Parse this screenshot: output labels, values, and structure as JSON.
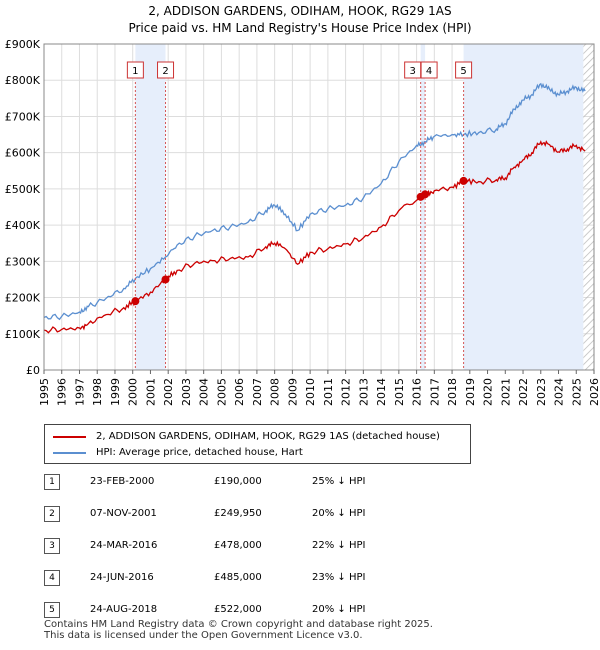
{
  "chart_data": {
    "type": "line",
    "title": "2, ADDISON GARDENS, ODIHAM, HOOK, RG29 1AS",
    "subtitle": "Price paid vs. HM Land Registry's House Price Index (HPI)",
    "xlim": [
      1995,
      2026
    ],
    "ylim": [
      0,
      900000
    ],
    "x_ticks": [
      "1995",
      "1996",
      "1997",
      "1998",
      "1999",
      "2000",
      "2001",
      "2002",
      "2003",
      "2004",
      "2005",
      "2006",
      "2007",
      "2008",
      "2009",
      "2010",
      "2011",
      "2012",
      "2013",
      "2014",
      "2015",
      "2016",
      "2017",
      "2018",
      "2019",
      "2020",
      "2021",
      "2022",
      "2023",
      "2024",
      "2025",
      "2026"
    ],
    "y_ticks": [
      {
        "value": 0,
        "label": "£0"
      },
      {
        "value": 100000,
        "label": "£100K"
      },
      {
        "value": 200000,
        "label": "£200K"
      },
      {
        "value": 300000,
        "label": "£300K"
      },
      {
        "value": 400000,
        "label": "£400K"
      },
      {
        "value": 500000,
        "label": "£500K"
      },
      {
        "value": 600000,
        "label": "£600K"
      },
      {
        "value": 700000,
        "label": "£700K"
      },
      {
        "value": 800000,
        "label": "£800K"
      },
      {
        "value": 900000,
        "label": "£900K"
      }
    ],
    "grid": true,
    "series": [
      {
        "name": "2, ADDISON GARDENS, ODIHAM, HOOK, RG29 1AS (detached house)",
        "color": "#cc0000",
        "x": [
          1995.0,
          1996.0,
          1997.0,
          1997.5,
          1998.5,
          1999.5,
          2000.15,
          2001.0,
          2001.85,
          2002.5,
          2003.5,
          2004.5,
          2005.5,
          2006.5,
          2007.5,
          2008.0,
          2008.6,
          2009.3,
          2010.0,
          2011.0,
          2012.0,
          2013.0,
          2014.0,
          2015.0,
          2016.23,
          2016.48,
          2017.0,
          2018.0,
          2018.65,
          2019.5,
          2020.5,
          2021.0,
          2021.5,
          2022.0,
          2022.5,
          2023.0,
          2023.5,
          2024.0,
          2024.5,
          2025.0,
          2025.5
        ],
        "y": [
          110000,
          112000,
          116000,
          128000,
          153000,
          172000,
          190000,
          215000,
          249950,
          275000,
          295000,
          302000,
          308000,
          312000,
          340000,
          350000,
          335000,
          292000,
          325000,
          335000,
          348000,
          365000,
          395000,
          440000,
          478000,
          485000,
          495000,
          505000,
          522000,
          520000,
          525000,
          530000,
          560000,
          580000,
          600000,
          630000,
          622000,
          602000,
          610000,
          620000,
          605000
        ]
      },
      {
        "name": "HPI: Average price, detached house, Hart",
        "color": "#5b8fd0",
        "x": [
          1995.0,
          1996.0,
          1997.0,
          1997.5,
          1998.5,
          1999.5,
          2000.15,
          2001.0,
          2001.85,
          2002.5,
          2003.5,
          2004.5,
          2005.5,
          2006.5,
          2007.5,
          2008.0,
          2008.6,
          2009.3,
          2010.0,
          2011.0,
          2012.0,
          2013.0,
          2014.0,
          2015.0,
          2016.0,
          2016.5,
          2017.0,
          2018.0,
          2018.65,
          2019.5,
          2020.5,
          2021.0,
          2021.5,
          2022.0,
          2022.5,
          2023.0,
          2023.5,
          2024.0,
          2024.5,
          2025.0,
          2025.5
        ],
        "y": [
          145000,
          148000,
          160000,
          175000,
          198000,
          225000,
          253000,
          280000,
          312000,
          345000,
          370000,
          385000,
          395000,
          408000,
          440000,
          455000,
          430000,
          385000,
          430000,
          445000,
          455000,
          475000,
          515000,
          575000,
          620000,
          630000,
          645000,
          650000,
          650000,
          655000,
          665000,
          680000,
          720000,
          745000,
          760000,
          790000,
          775000,
          760000,
          770000,
          780000,
          770000
        ]
      }
    ],
    "sales": [
      {
        "label": "1",
        "x": 2000.15,
        "y": 190000
      },
      {
        "label": "2",
        "x": 2001.85,
        "y": 249950
      },
      {
        "label": "3",
        "x": 2016.23,
        "y": 478000
      },
      {
        "label": "4",
        "x": 2016.48,
        "y": 485000
      },
      {
        "label": "5",
        "x": 2018.65,
        "y": 522000
      }
    ],
    "shaded_ranges": [
      [
        2000.15,
        2001.85
      ],
      [
        2016.23,
        2016.48
      ],
      [
        2018.65,
        2025.4
      ]
    ],
    "hatch_start": 2025.4
  },
  "legend": {
    "property_label": "2, ADDISON GARDENS, ODIHAM, HOOK, RG29 1AS (detached house)",
    "hpi_label": "HPI: Average price, detached house, Hart"
  },
  "transactions": [
    {
      "num": "1",
      "date": "23-FEB-2000",
      "price": "£190,000",
      "delta": "25% ↓ HPI"
    },
    {
      "num": "2",
      "date": "07-NOV-2001",
      "price": "£249,950",
      "delta": "20% ↓ HPI"
    },
    {
      "num": "3",
      "date": "24-MAR-2016",
      "price": "£478,000",
      "delta": "22% ↓ HPI"
    },
    {
      "num": "4",
      "date": "24-JUN-2016",
      "price": "£485,000",
      "delta": "23% ↓ HPI"
    },
    {
      "num": "5",
      "date": "24-AUG-2018",
      "price": "£522,000",
      "delta": "20% ↓ HPI"
    }
  ],
  "footer": {
    "line1": "Contains HM Land Registry data © Crown copyright and database right 2025.",
    "line2": "This data is licensed under the Open Government Licence v3.0."
  },
  "colors": {
    "property": "#cc0000",
    "hpi": "#5b8fd0",
    "shade": "#e6eefb",
    "sale_line": "#d45555",
    "grid": "#dddddd"
  }
}
